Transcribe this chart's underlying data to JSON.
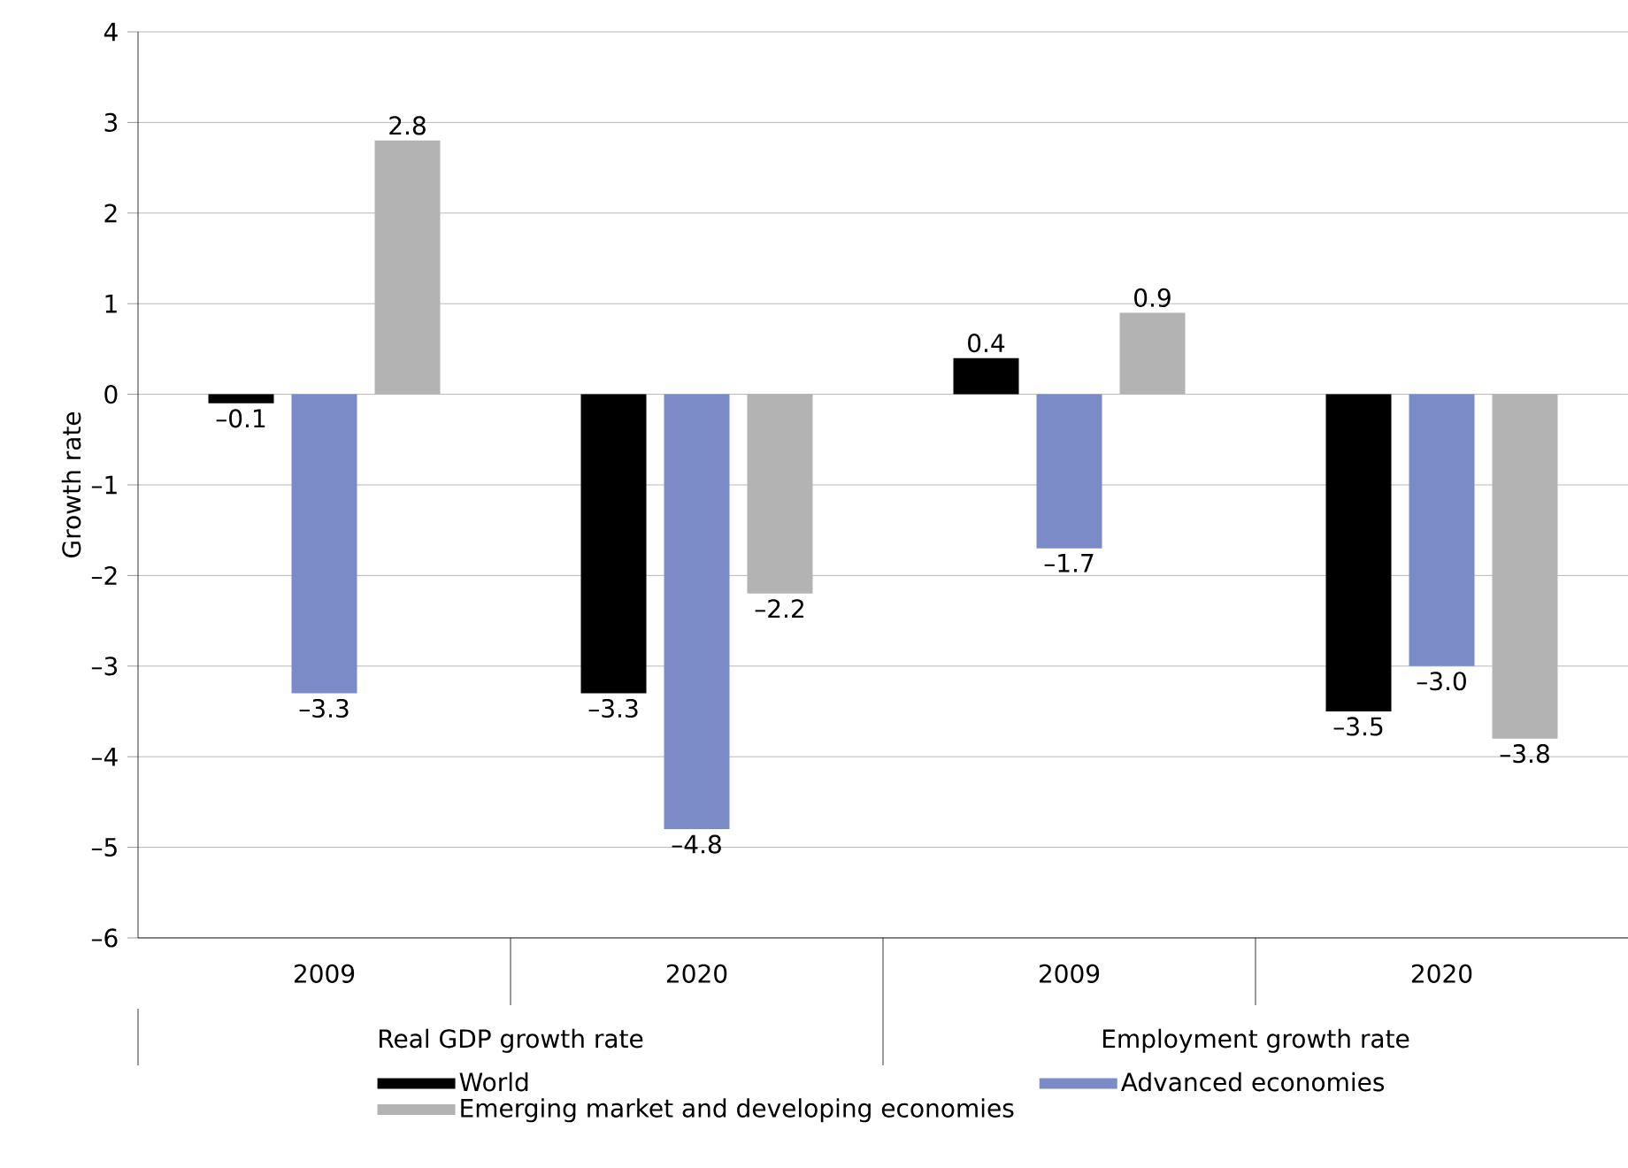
{
  "chart_data": {
    "type": "bar",
    "ylabel": "Growth rate",
    "categories": [
      "2009",
      "2020",
      "2009",
      "2020"
    ],
    "annotations": [
      "Real GDP growth rate",
      "Employment growth rate"
    ],
    "series": [
      {
        "name": "World",
        "color": "#000000",
        "values": [
          -0.1,
          -3.3,
          0.4,
          -3.5
        ],
        "value_labels": [
          "–0.1",
          "–3.3",
          "0.4",
          "–3.5"
        ]
      },
      {
        "name": "Advanced economies",
        "color": "#7b8bc8",
        "values": [
          -3.3,
          -4.8,
          -1.7,
          -3.0
        ],
        "value_labels": [
          "–3.3",
          "–4.8",
          "–1.7",
          "–3.0"
        ]
      },
      {
        "name": "Emerging market and developing economies",
        "color": "#b3b3b3",
        "values": [
          2.8,
          -2.2,
          0.9,
          -3.8
        ],
        "value_labels": [
          "2.8",
          "–2.2",
          "0.9",
          "–3.8"
        ]
      }
    ],
    "ylim": [
      -6,
      4
    ],
    "yticks": [
      {
        "value": -6,
        "label": "–6"
      },
      {
        "value": -5,
        "label": "–5"
      },
      {
        "value": -4,
        "label": "–4"
      },
      {
        "value": -3,
        "label": "–3"
      },
      {
        "value": -2,
        "label": "–2"
      },
      {
        "value": -1,
        "label": "–1"
      },
      0,
      1,
      2,
      3,
      4
    ],
    "grid": "y",
    "legend": "bottom"
  }
}
